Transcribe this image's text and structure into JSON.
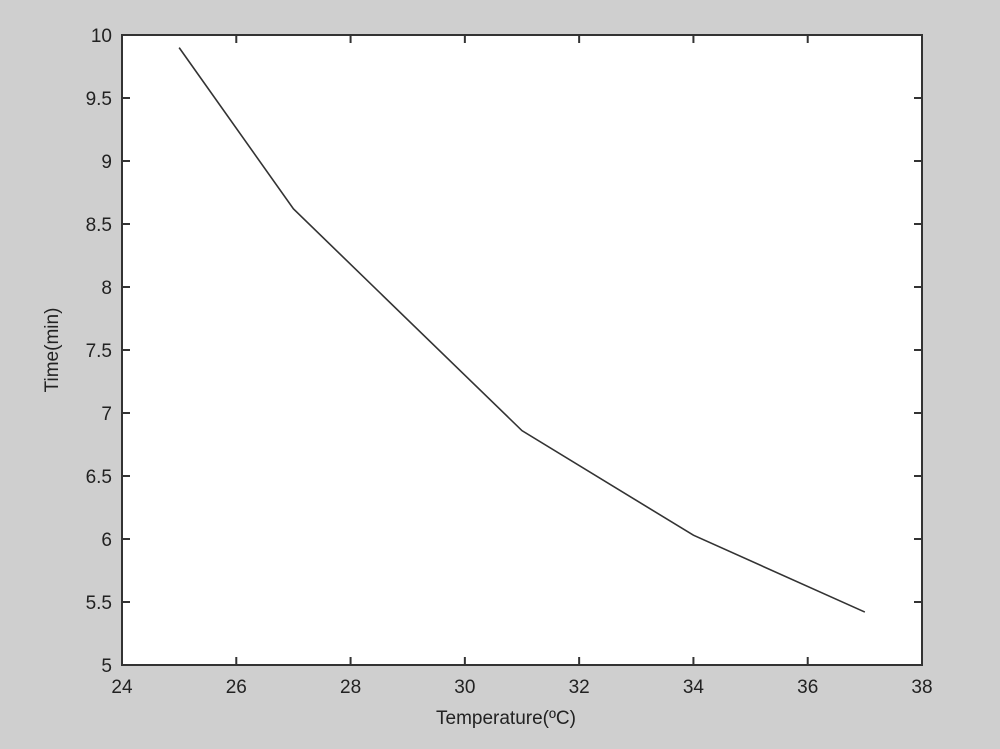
{
  "chart_data": {
    "type": "line",
    "title": "",
    "xlabel": "Temperature(ºC)",
    "ylabel": "Time(min)",
    "xlim": [
      24,
      38
    ],
    "ylim": [
      5,
      10
    ],
    "xticks": [
      "24",
      "26",
      "28",
      "30",
      "32",
      "34",
      "36",
      "38"
    ],
    "yticks": [
      "5",
      "5.5",
      "6",
      "6.5",
      "7",
      "7.5",
      "8",
      "8.5",
      "9",
      "9.5",
      "10"
    ],
    "grid": false,
    "series": [
      {
        "x": [
          25,
          27,
          31,
          34,
          37
        ],
        "y": [
          9.9,
          8.62,
          6.86,
          6.03,
          5.42
        ],
        "color": "#333333"
      }
    ],
    "colors": {
      "background": "#cfcfcf",
      "plot_area": "#ffffff",
      "axes": "#333333"
    }
  }
}
